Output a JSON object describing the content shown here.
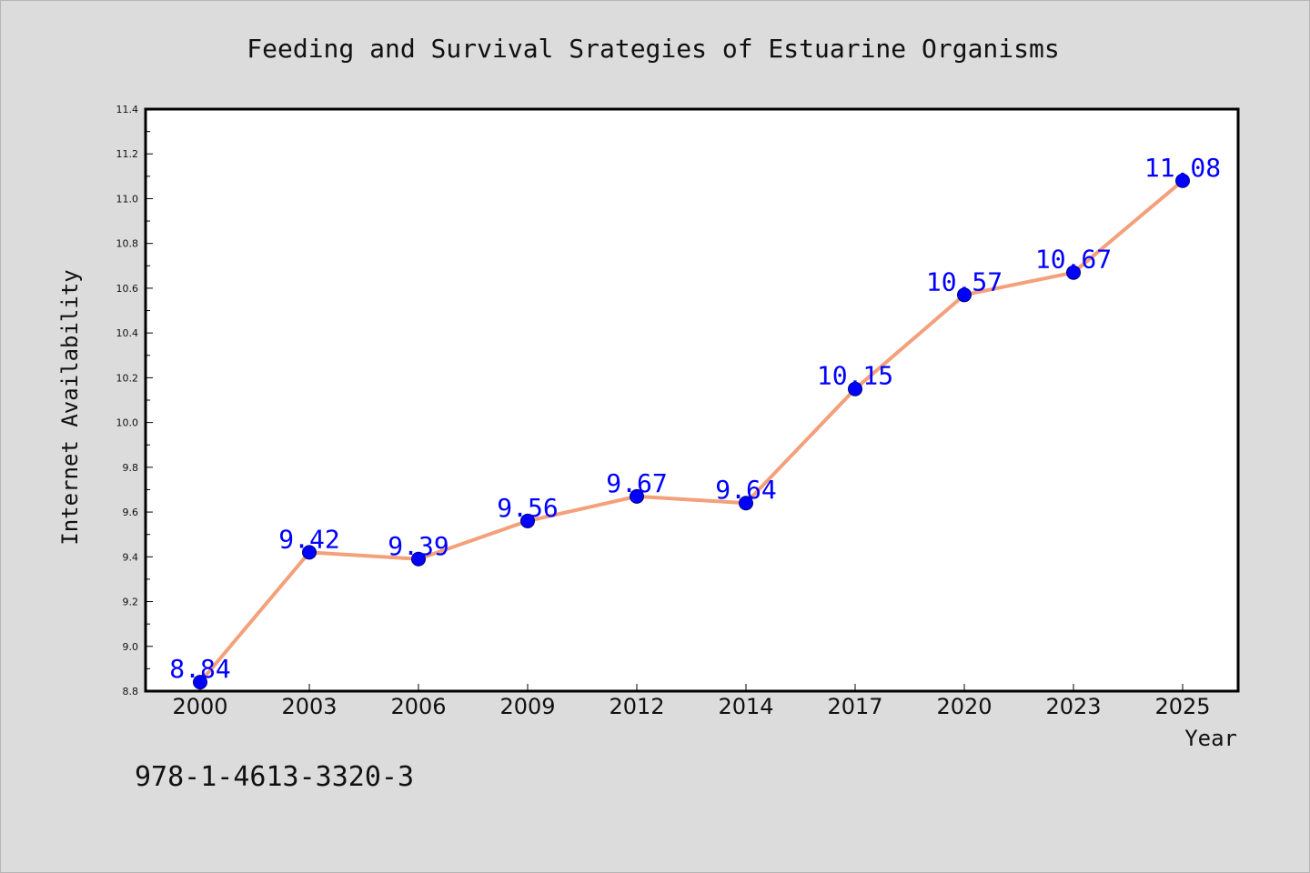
{
  "chart_data": {
    "type": "line",
    "title": "Feeding and Survival Srategies of Estuarine Organisms",
    "xlabel": "Year",
    "ylabel": "Internet Availability",
    "categories": [
      "2000",
      "2003",
      "2006",
      "2009",
      "2012",
      "2014",
      "2017",
      "2020",
      "2023",
      "2025"
    ],
    "values": [
      8.84,
      9.42,
      9.39,
      9.56,
      9.67,
      9.64,
      10.15,
      10.57,
      10.67,
      11.08
    ],
    "data_labels": [
      "8.84",
      "9.42",
      "9.39",
      "9.56",
      "9.67",
      "9.64",
      "10.15",
      "10.57",
      "10.67",
      "11.08"
    ],
    "ylim": [
      8.8,
      11.4
    ],
    "yticks": [
      "8.8",
      "9.0",
      "9.2",
      "9.4",
      "9.6",
      "9.8",
      "10.0",
      "10.2",
      "10.4",
      "10.6",
      "10.8",
      "11.0",
      "11.2",
      "11.4"
    ],
    "grid": false,
    "line_color": "#f4a07a",
    "marker_color": "#0000ff",
    "label_color": "#0000ff"
  },
  "footer_text": "978-1-4613-3320-3"
}
